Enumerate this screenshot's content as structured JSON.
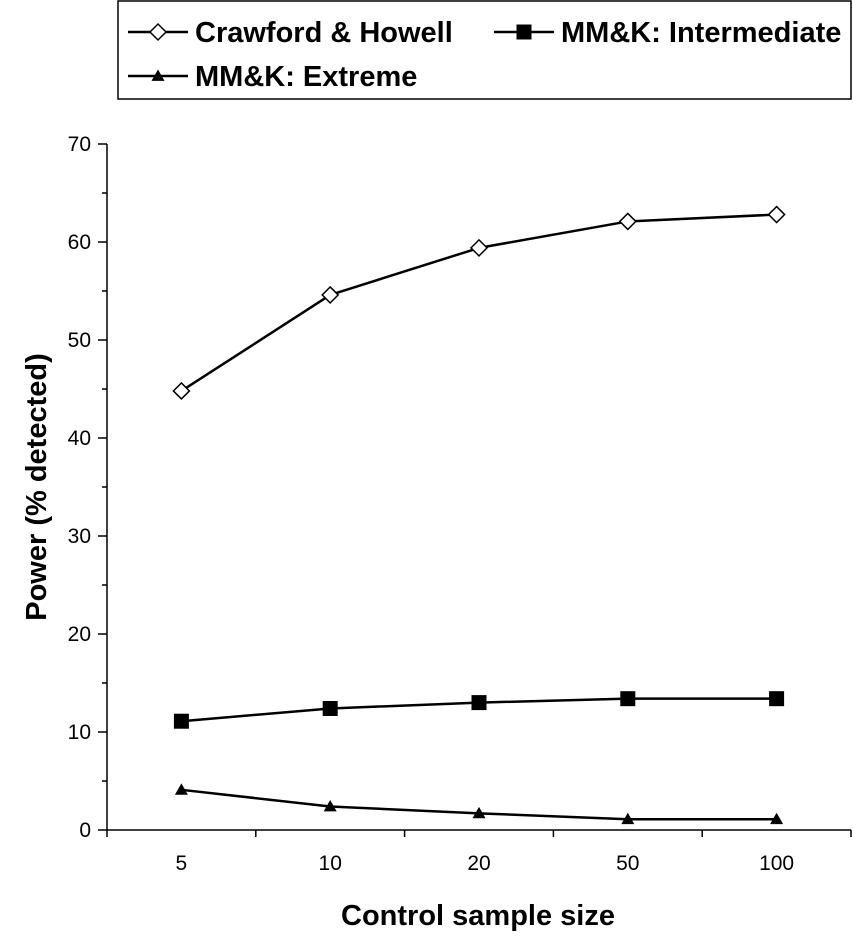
{
  "chart_data": {
    "type": "line",
    "x_categories": [
      "5",
      "10",
      "20",
      "50",
      "100"
    ],
    "xlabel": "Control sample size",
    "ylabel": "Power (% detected)",
    "ylim": [
      0,
      70
    ],
    "y_major_ticks": [
      0,
      10,
      20,
      30,
      40,
      50,
      60,
      70
    ],
    "y_minor_step": 5,
    "grid": false,
    "legend_position": "top",
    "series": [
      {
        "name": "Crawford & Howell",
        "marker": "diamond-open",
        "color": "#000000",
        "values": [
          44.8,
          54.6,
          59.4,
          62.1,
          62.8
        ]
      },
      {
        "name": "MM&K: Intermediate",
        "marker": "square-filled",
        "color": "#000000",
        "values": [
          11.1,
          12.4,
          13.0,
          13.4,
          13.4
        ]
      },
      {
        "name": "MM&K: Extreme",
        "marker": "triangle-filled",
        "color": "#000000",
        "values": [
          4.1,
          2.4,
          1.7,
          1.1,
          1.1
        ]
      }
    ]
  }
}
